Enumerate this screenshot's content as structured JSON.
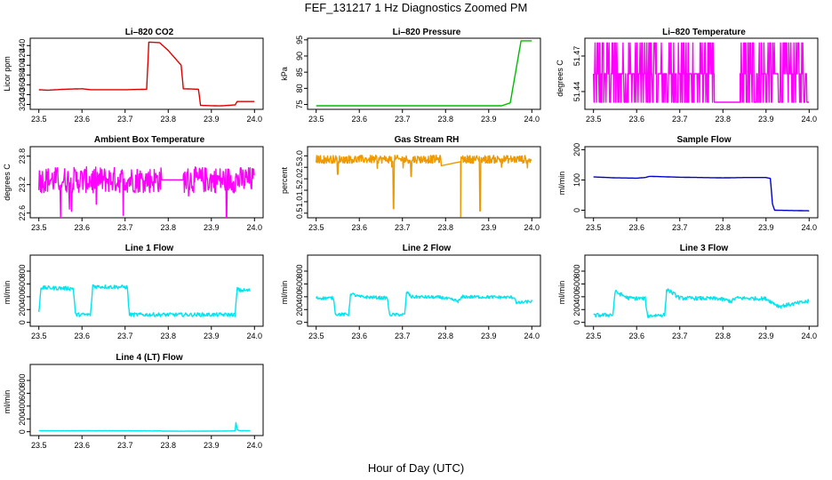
{
  "figure": {
    "title": "FEF_131217  1 Hz Diagnostics Zoomed PM",
    "xlabel": "Hour of Day (UTC)"
  },
  "chart_data": [
    {
      "id": "li820-co2",
      "type": "line",
      "title": "Li–820 CO2",
      "ylabel": "Licor ppm",
      "color": "#dd0000",
      "xlim": [
        23.48,
        24.02
      ],
      "ylim": [
        310,
        455
      ],
      "xticks": [
        "23.5",
        "23.6",
        "23.7",
        "23.8",
        "23.9",
        "24.0"
      ],
      "yticks": [
        "320",
        "340",
        "360",
        "380",
        "400",
        "420",
        "440"
      ],
      "x": [
        23.5,
        23.52,
        23.56,
        23.6,
        23.62,
        23.65,
        23.7,
        23.75,
        23.755,
        23.78,
        23.8,
        23.83,
        23.835,
        23.87,
        23.875,
        23.92,
        23.955,
        23.96,
        24.0
      ],
      "y": [
        350,
        349,
        351,
        352,
        350,
        350,
        350,
        351,
        447,
        446,
        430,
        400,
        352,
        351,
        318,
        317,
        319,
        326,
        326
      ]
    },
    {
      "id": "li820-pressure",
      "type": "line",
      "title": "Li–820 Pressure",
      "ylabel": "kPa",
      "color": "#00bb00",
      "xlim": [
        23.48,
        24.02
      ],
      "ylim": [
        73.5,
        95.5
      ],
      "xticks": [
        "23.5",
        "23.6",
        "23.7",
        "23.8",
        "23.9",
        "24.0"
      ],
      "yticks": [
        "75",
        "80",
        "85",
        "90",
        "95"
      ],
      "x": [
        23.5,
        23.6,
        23.7,
        23.8,
        23.85,
        23.9,
        23.93,
        23.95,
        23.965,
        23.975,
        24.0
      ],
      "y": [
        74.6,
        74.6,
        74.6,
        74.6,
        74.6,
        74.6,
        74.6,
        75.5,
        87.0,
        94.7,
        94.7
      ]
    },
    {
      "id": "li820-temperature",
      "type": "line",
      "title": "Li–820 Temperature",
      "ylabel": "degrees C",
      "color": "#ff00ff",
      "xlim": [
        23.48,
        24.02
      ],
      "ylim": [
        51.425,
        51.485
      ],
      "xticks": [
        "23.5",
        "23.6",
        "23.7",
        "23.8",
        "23.9",
        "24.0"
      ],
      "yticks": [
        "51.44",
        "51.47"
      ],
      "segments": [
        [
          23.5,
          23.78
        ],
        [
          23.84,
          24.0
        ]
      ],
      "levels": [
        51.431,
        51.455,
        51.481
      ],
      "gap_level": 51.431
    },
    {
      "id": "ambient-box-temperature",
      "type": "line",
      "title": "Ambient Box Temperature",
      "ylabel": "degrees C",
      "color": "#ff00ff",
      "xlim": [
        23.48,
        24.02
      ],
      "ylim": [
        22.5,
        24.0
      ],
      "xticks": [
        "23.5",
        "23.6",
        "23.7",
        "23.8",
        "23.9",
        "24.0"
      ],
      "yticks": [
        "22.6",
        "23.2",
        "23.8"
      ],
      "segments": [
        [
          23.5,
          23.785
        ],
        [
          23.835,
          24.0
        ]
      ],
      "mean": 23.3,
      "spread": 0.55,
      "gap_level": 23.3
    },
    {
      "id": "gas-stream-rh",
      "type": "line",
      "title": "Gas Stream RH",
      "ylabel": "percent",
      "color": "#ee9900",
      "xlim": [
        23.48,
        24.02
      ],
      "ylim": [
        0.3,
        3.4
      ],
      "xticks": [
        "23.5",
        "23.6",
        "23.7",
        "23.8",
        "23.9",
        "24.0"
      ],
      "yticks": [
        "0.5",
        "1.0",
        "1.5",
        "2.0",
        "2.5",
        "3.0"
      ],
      "segments": [
        [
          23.5,
          23.79
        ],
        [
          23.835,
          24.0
        ]
      ],
      "mean": 2.85,
      "spread": 0.35,
      "dips": [
        [
          23.68,
          0.7
        ],
        [
          23.835,
          0.35
        ],
        [
          23.88,
          0.6
        ],
        [
          23.72,
          2.1
        ],
        [
          23.55,
          2.2
        ]
      ]
    },
    {
      "id": "sample-flow",
      "type": "line",
      "title": "Sample Flow",
      "ylabel": "ml/min",
      "color": "#0000cc",
      "xlim": [
        23.48,
        24.02
      ],
      "ylim": [
        -25,
        210
      ],
      "xticks": [
        "23.5",
        "23.6",
        "23.7",
        "23.8",
        "23.9",
        "24.0"
      ],
      "yticks": [
        "0",
        "100",
        "200"
      ],
      "x": [
        23.5,
        23.55,
        23.6,
        23.62,
        23.63,
        23.7,
        23.75,
        23.8,
        23.85,
        23.9,
        23.91,
        23.915,
        23.92,
        24.0
      ],
      "y": [
        110,
        107,
        106,
        108,
        112,
        109,
        108,
        107,
        108,
        108,
        105,
        20,
        0,
        -2
      ]
    },
    {
      "id": "line-1-flow",
      "type": "line",
      "title": "Line 1 Flow",
      "ylabel": "ml/min",
      "color": "#00e5ee",
      "xlim": [
        23.48,
        24.02
      ],
      "ylim": [
        -60,
        1050
      ],
      "xticks": [
        "23.5",
        "23.6",
        "23.7",
        "23.8",
        "23.9",
        "24.0"
      ],
      "yticks": [
        "0",
        "200",
        "400",
        "600",
        "800"
      ],
      "x": [
        23.5,
        23.505,
        23.51,
        23.58,
        23.585,
        23.62,
        23.625,
        23.63,
        23.705,
        23.71,
        23.955,
        23.96,
        23.965,
        23.99
      ],
      "y": [
        150,
        550,
        540,
        530,
        120,
        120,
        580,
        560,
        550,
        120,
        120,
        520,
        500,
        500
      ],
      "noise": 60
    },
    {
      "id": "line-2-flow",
      "type": "line",
      "title": "Line 2 Flow",
      "ylabel": "ml/min",
      "color": "#00e5ee",
      "xlim": [
        23.48,
        24.02
      ],
      "ylim": [
        -60,
        1050
      ],
      "xticks": [
        "23.5",
        "23.6",
        "23.7",
        "23.8",
        "23.9",
        "24.0"
      ],
      "yticks": [
        "0",
        "200",
        "400",
        "600",
        "800"
      ],
      "x": [
        23.5,
        23.54,
        23.545,
        23.575,
        23.58,
        23.6,
        23.665,
        23.67,
        23.705,
        23.71,
        23.72,
        23.79,
        23.83,
        23.84,
        23.96,
        23.965,
        24.0
      ],
      "y": [
        380,
        380,
        130,
        120,
        450,
        400,
        380,
        120,
        120,
        480,
        400,
        390,
        330,
        400,
        390,
        300,
        330
      ],
      "noise": 50
    },
    {
      "id": "line-3-flow",
      "type": "line",
      "title": "Line 3 Flow",
      "ylabel": "ml/min",
      "color": "#00e5ee",
      "xlim": [
        23.48,
        24.02
      ],
      "ylim": [
        -60,
        1050
      ],
      "xticks": [
        "23.5",
        "23.6",
        "23.7",
        "23.8",
        "23.9",
        "24.0"
      ],
      "yticks": [
        "0",
        "200",
        "400",
        "600",
        "800"
      ],
      "x": [
        23.5,
        23.505,
        23.545,
        23.55,
        23.58,
        23.62,
        23.625,
        23.665,
        23.67,
        23.7,
        23.79,
        23.82,
        23.83,
        23.9,
        23.91,
        23.93,
        24.0
      ],
      "y": [
        100,
        110,
        120,
        480,
        380,
        370,
        100,
        120,
        520,
        380,
        370,
        330,
        380,
        370,
        330,
        250,
        330
      ],
      "noise": 60
    },
    {
      "id": "line-4-flow",
      "type": "line",
      "title": "Line 4 (LT) Flow",
      "ylabel": "ml/min",
      "color": "#00e5ee",
      "xlim": [
        23.48,
        24.02
      ],
      "ylim": [
        -60,
        1050
      ],
      "xticks": [
        "23.5",
        "23.6",
        "23.7",
        "23.8",
        "23.9",
        "24.0"
      ],
      "yticks": [
        "0",
        "200",
        "400",
        "600",
        "800"
      ],
      "x": [
        23.5,
        23.6,
        23.7,
        23.78,
        23.82,
        23.9,
        23.955,
        23.957,
        23.96,
        23.965,
        23.99
      ],
      "y": [
        15,
        15,
        15,
        12,
        8,
        10,
        12,
        140,
        30,
        18,
        15
      ],
      "noise": 4
    }
  ]
}
